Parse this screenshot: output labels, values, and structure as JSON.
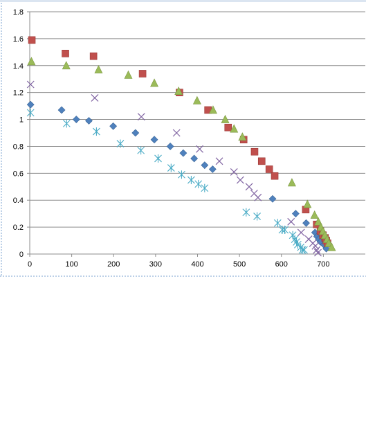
{
  "chart_data": {
    "type": "scatter",
    "title": "",
    "xlabel": "",
    "ylabel": "",
    "xlim": [
      0,
      800
    ],
    "ylim": [
      0,
      1.8
    ],
    "x_ticks": [
      0,
      100,
      200,
      300,
      400,
      500,
      600,
      700
    ],
    "y_ticks": [
      0,
      0.2,
      0.4,
      0.6,
      0.8,
      1,
      1.2,
      1.4,
      1.6,
      1.8
    ],
    "x_tick_labels": [
      "0",
      "100",
      "200",
      "300",
      "400",
      "500",
      "600",
      "700"
    ],
    "y_tick_labels": [
      "0",
      "0.2",
      "0.4",
      "0.6",
      "0.8",
      "1",
      "1.2",
      "1.4",
      "1.6",
      "1.8"
    ],
    "grid": "horizontal",
    "legend": "none",
    "series": [
      {
        "marker": "diamond",
        "color": "#4f81bd",
        "points": [
          [
            2,
            1.11
          ],
          [
            76,
            1.07
          ],
          [
            111,
            1.0
          ],
          [
            141,
            0.99
          ],
          [
            199,
            0.95
          ],
          [
            252,
            0.9
          ],
          [
            297,
            0.85
          ],
          [
            335,
            0.8
          ],
          [
            366,
            0.75
          ],
          [
            392,
            0.71
          ],
          [
            417,
            0.66
          ],
          [
            436,
            0.63
          ],
          [
            579,
            0.41
          ],
          [
            634,
            0.3
          ],
          [
            659,
            0.23
          ],
          [
            680,
            0.16
          ],
          [
            685,
            0.13
          ],
          [
            689,
            0.11
          ],
          [
            693,
            0.09
          ],
          [
            701,
            0.07
          ],
          [
            707,
            0.04
          ]
        ]
      },
      {
        "marker": "square",
        "color": "#c0504d",
        "points": [
          [
            5,
            1.59
          ],
          [
            85,
            1.49
          ],
          [
            152,
            1.47
          ],
          [
            269,
            1.34
          ],
          [
            357,
            1.2
          ],
          [
            425,
            1.07
          ],
          [
            473,
            0.94
          ],
          [
            510,
            0.85
          ],
          [
            536,
            0.76
          ],
          [
            553,
            0.69
          ],
          [
            571,
            0.63
          ],
          [
            584,
            0.58
          ],
          [
            658,
            0.33
          ],
          [
            684,
            0.22
          ],
          [
            693,
            0.17
          ],
          [
            699,
            0.14
          ],
          [
            704,
            0.12
          ],
          [
            707,
            0.1
          ],
          [
            710,
            0.08
          ]
        ]
      },
      {
        "marker": "triangle",
        "color": "#9bbb59",
        "points": [
          [
            4,
            1.43
          ],
          [
            87,
            1.4
          ],
          [
            164,
            1.37
          ],
          [
            235,
            1.33
          ],
          [
            297,
            1.27
          ],
          [
            355,
            1.21
          ],
          [
            399,
            1.14
          ],
          [
            437,
            1.07
          ],
          [
            466,
            1.0
          ],
          [
            487,
            0.93
          ],
          [
            507,
            0.87
          ],
          [
            625,
            0.53
          ],
          [
            662,
            0.37
          ],
          [
            679,
            0.29
          ],
          [
            688,
            0.24
          ],
          [
            694,
            0.2
          ],
          [
            699,
            0.17
          ],
          [
            704,
            0.14
          ],
          [
            709,
            0.11
          ],
          [
            713,
            0.08
          ],
          [
            720,
            0.05
          ]
        ]
      },
      {
        "marker": "x",
        "color": "#8064a2",
        "points": [
          [
            2,
            1.26
          ],
          [
            155,
            1.16
          ],
          [
            266,
            1.02
          ],
          [
            350,
            0.9
          ],
          [
            405,
            0.78
          ],
          [
            452,
            0.69
          ],
          [
            487,
            0.61
          ],
          [
            502,
            0.55
          ],
          [
            523,
            0.5
          ],
          [
            535,
            0.45
          ],
          [
            544,
            0.42
          ],
          [
            623,
            0.24
          ],
          [
            647,
            0.16
          ],
          [
            665,
            0.11
          ],
          [
            675,
            0.08
          ],
          [
            681,
            0.06
          ],
          [
            684,
            0.03
          ],
          [
            687,
            0.01
          ]
        ]
      },
      {
        "marker": "star",
        "color": "#4bacc6",
        "points": [
          [
            2,
            1.05
          ],
          [
            88,
            0.97
          ],
          [
            159,
            0.91
          ],
          [
            216,
            0.82
          ],
          [
            265,
            0.77
          ],
          [
            306,
            0.71
          ],
          [
            337,
            0.64
          ],
          [
            362,
            0.59
          ],
          [
            385,
            0.55
          ],
          [
            402,
            0.52
          ],
          [
            417,
            0.49
          ],
          [
            516,
            0.31
          ],
          [
            542,
            0.28
          ],
          [
            591,
            0.23
          ],
          [
            602,
            0.18
          ],
          [
            608,
            0.18
          ],
          [
            627,
            0.14
          ],
          [
            632,
            0.11
          ],
          [
            636,
            0.09
          ],
          [
            639,
            0.07
          ],
          [
            646,
            0.05
          ],
          [
            650,
            0.03
          ],
          [
            654,
            0.03
          ]
        ]
      }
    ]
  }
}
